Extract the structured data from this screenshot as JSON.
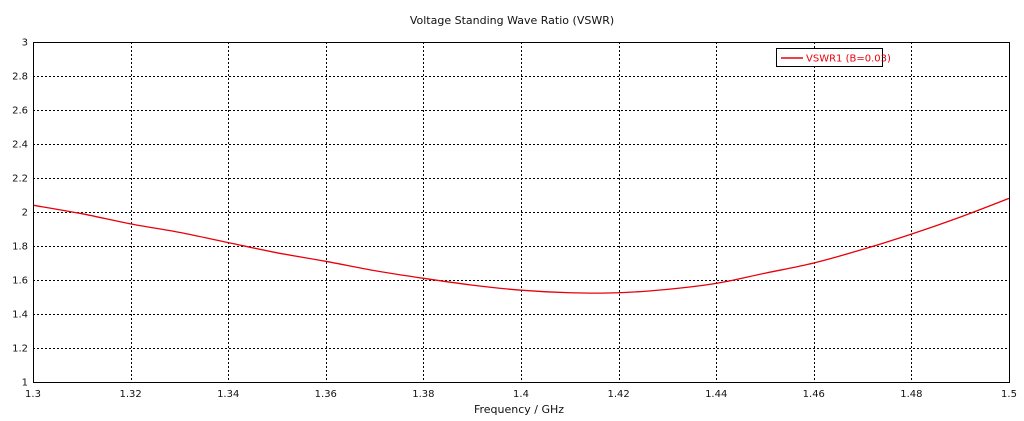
{
  "chart_data": {
    "type": "line",
    "title": "Voltage Standing Wave Ratio (VSWR)",
    "xlabel": "Frequency / GHz",
    "ylabel": "",
    "xlim": [
      1.3,
      1.5
    ],
    "ylim": [
      1,
      3
    ],
    "x_ticks": [
      "1.3",
      "1.32",
      "1.34",
      "1.36",
      "1.38",
      "1.4",
      "1.42",
      "1.44",
      "1.46",
      "1.48",
      "1.5"
    ],
    "y_ticks": [
      "1",
      "1.2",
      "1.4",
      "1.6",
      "1.8",
      "2",
      "2.2",
      "2.4",
      "2.6",
      "2.8",
      "3"
    ],
    "grid": true,
    "legend_position": "top-right",
    "series": [
      {
        "name": "VSWR1 (B=0.03)",
        "color": "#e8000b",
        "x": [
          1.3,
          1.31,
          1.32,
          1.33,
          1.34,
          1.35,
          1.36,
          1.37,
          1.38,
          1.39,
          1.4,
          1.41,
          1.42,
          1.43,
          1.44,
          1.45,
          1.46,
          1.47,
          1.48,
          1.49,
          1.5
        ],
        "y": [
          2.04,
          1.99,
          1.93,
          1.88,
          1.82,
          1.76,
          1.71,
          1.655,
          1.61,
          1.57,
          1.54,
          1.525,
          1.525,
          1.545,
          1.58,
          1.64,
          1.7,
          1.78,
          1.87,
          1.97,
          2.08
        ]
      }
    ]
  }
}
